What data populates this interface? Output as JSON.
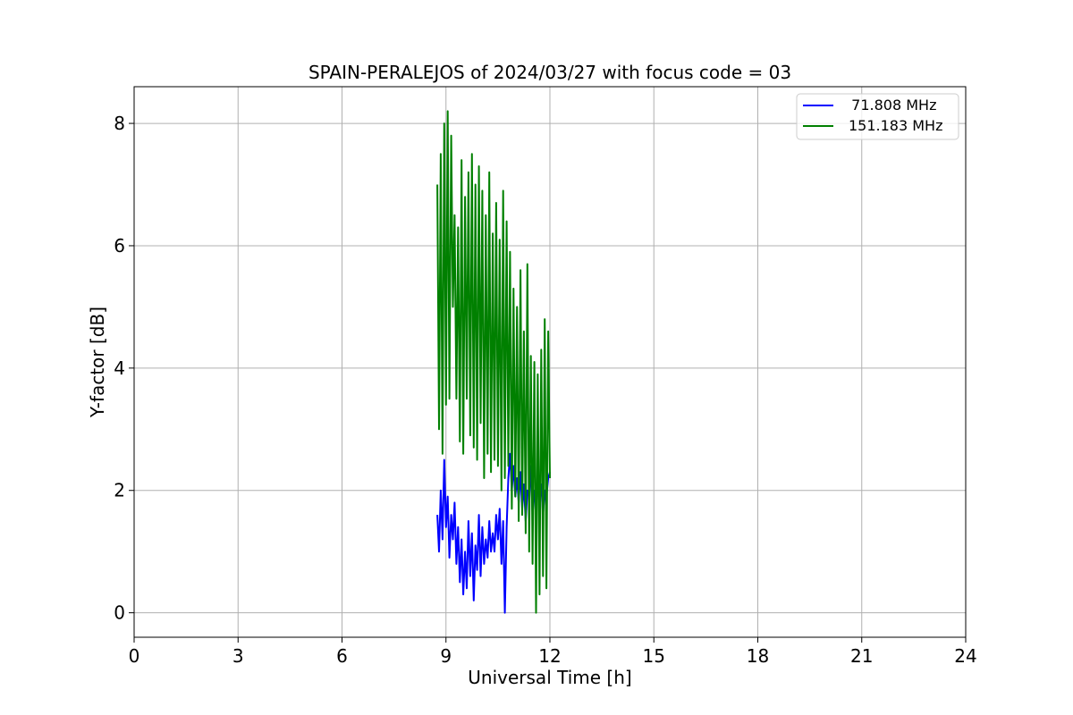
{
  "chart_data": {
    "type": "line",
    "title": "SPAIN-PERALEJOS of 2024/03/27 with focus code = 03",
    "xlabel": "Universal Time [h]",
    "ylabel": "Y-factor [dB]",
    "xlim": [
      0,
      24
    ],
    "ylim": [
      -0.4,
      8.6
    ],
    "xticks": [
      0,
      3,
      6,
      9,
      12,
      15,
      18,
      21,
      24
    ],
    "yticks": [
      0,
      2,
      4,
      6,
      8
    ],
    "xtick_labels": [
      "0",
      "3",
      "6",
      "9",
      "12",
      "15",
      "18",
      "21",
      "24"
    ],
    "ytick_labels": [
      "0",
      "2",
      "4",
      "6",
      "8"
    ],
    "grid": true,
    "legend_position": "top-right",
    "series": [
      {
        "name": "  71.808 MHz",
        "color": "#0000ff",
        "x": [
          8.75,
          8.8,
          8.85,
          8.9,
          8.95,
          9.0,
          9.05,
          9.1,
          9.15,
          9.2,
          9.25,
          9.3,
          9.35,
          9.4,
          9.45,
          9.5,
          9.55,
          9.6,
          9.65,
          9.7,
          9.75,
          9.8,
          9.85,
          9.9,
          9.95,
          10.0,
          10.05,
          10.1,
          10.15,
          10.2,
          10.25,
          10.3,
          10.35,
          10.4,
          10.45,
          10.5,
          10.55,
          10.6,
          10.65,
          10.7,
          10.75,
          10.8,
          10.85,
          10.9,
          10.95,
          11.0,
          11.05,
          11.1,
          11.15,
          11.2,
          11.25,
          11.3,
          11.35,
          11.4,
          11.45,
          11.5,
          11.55,
          11.6,
          11.65,
          11.7,
          11.75,
          11.8,
          11.85,
          11.9,
          11.95,
          12.0
        ],
        "y": [
          1.6,
          1.0,
          2.0,
          1.2,
          2.5,
          1.4,
          1.9,
          0.9,
          1.6,
          1.2,
          1.8,
          0.8,
          1.4,
          0.5,
          1.2,
          0.3,
          1.0,
          0.4,
          1.5,
          0.6,
          1.3,
          0.2,
          1.1,
          0.7,
          1.6,
          0.6,
          1.4,
          0.8,
          1.2,
          0.9,
          1.5,
          1.0,
          1.3,
          1.0,
          1.6,
          1.2,
          1.7,
          0.8,
          1.5,
          0.0,
          1.4,
          2.2,
          2.6,
          2.0,
          2.4,
          1.9,
          2.2,
          1.8,
          2.3,
          1.7,
          2.1,
          1.5,
          2.0,
          1.9,
          2.4,
          1.6,
          2.0,
          1.7,
          2.2,
          1.8,
          2.1,
          1.6,
          2.0,
          1.9,
          2.2,
          2.3
        ]
      },
      {
        "name": "151.183 MHz",
        "color": "#008000",
        "x": [
          8.75,
          8.8,
          8.85,
          8.9,
          8.95,
          9.0,
          9.05,
          9.1,
          9.15,
          9.2,
          9.25,
          9.3,
          9.35,
          9.4,
          9.45,
          9.5,
          9.55,
          9.6,
          9.65,
          9.7,
          9.75,
          9.8,
          9.85,
          9.9,
          9.95,
          10.0,
          10.05,
          10.1,
          10.15,
          10.2,
          10.25,
          10.3,
          10.35,
          10.4,
          10.45,
          10.5,
          10.55,
          10.6,
          10.65,
          10.7,
          10.75,
          10.8,
          10.85,
          10.9,
          10.95,
          11.0,
          11.05,
          11.1,
          11.15,
          11.2,
          11.25,
          11.3,
          11.35,
          11.4,
          11.45,
          11.5,
          11.55,
          11.6,
          11.65,
          11.7,
          11.75,
          11.8,
          11.85,
          11.9,
          11.95,
          12.0
        ],
        "y": [
          7.0,
          3.0,
          7.5,
          2.6,
          8.0,
          3.4,
          8.2,
          3.5,
          7.8,
          5.0,
          6.5,
          3.5,
          6.3,
          2.8,
          7.4,
          2.6,
          6.8,
          3.5,
          7.2,
          2.9,
          7.5,
          2.7,
          7.0,
          2.5,
          7.3,
          3.1,
          6.9,
          2.2,
          6.5,
          2.6,
          7.2,
          2.3,
          6.2,
          2.5,
          6.7,
          2.4,
          6.1,
          2.0,
          6.9,
          2.2,
          6.4,
          2.4,
          5.9,
          1.7,
          5.3,
          1.9,
          5.0,
          1.5,
          5.6,
          1.6,
          4.6,
          1.3,
          5.7,
          1.0,
          4.2,
          0.8,
          4.1,
          0.0,
          3.9,
          0.3,
          4.3,
          0.6,
          4.8,
          0.4,
          4.6,
          2.2
        ]
      }
    ]
  }
}
